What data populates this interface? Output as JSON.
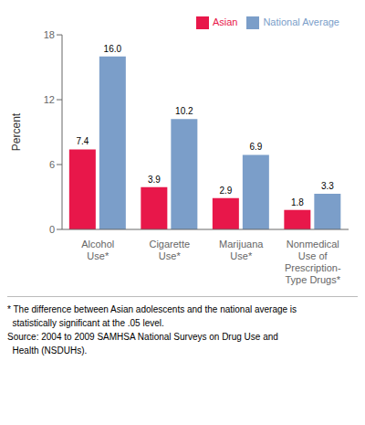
{
  "chart_data": {
    "type": "bar",
    "categories": [
      "Alcohol\nUse*",
      "Cigarette\nUse*",
      "Marijuana\nUse*",
      "Nonmedical\nUse of\nPrescription-\nType Drugs*"
    ],
    "series": [
      {
        "name": "Asian",
        "color": "#E8174A",
        "values": [
          7.4,
          3.9,
          2.9,
          1.8
        ],
        "value_labels": [
          "7.4",
          "3.9",
          "2.9",
          "1.8"
        ]
      },
      {
        "name": "National Average",
        "color": "#7B9EC9",
        "values": [
          16.0,
          10.2,
          6.9,
          3.3
        ],
        "value_labels": [
          "16.0",
          "10.2",
          "6.9",
          "3.3"
        ]
      }
    ],
    "ylabel": "Percent",
    "ylim": [
      0,
      18
    ],
    "yticks": [
      0,
      6,
      12,
      18
    ],
    "grid": false,
    "legend": "upper right",
    "data_labels": true,
    "annotations": [
      "* The difference between Asian adolescents and the national average is",
      "  statistically significant at the .05 level.",
      "Source: 2004 to 2009 SAMHSA National Surveys on Drug Use and",
      "  Health (NSDUHs)."
    ]
  }
}
